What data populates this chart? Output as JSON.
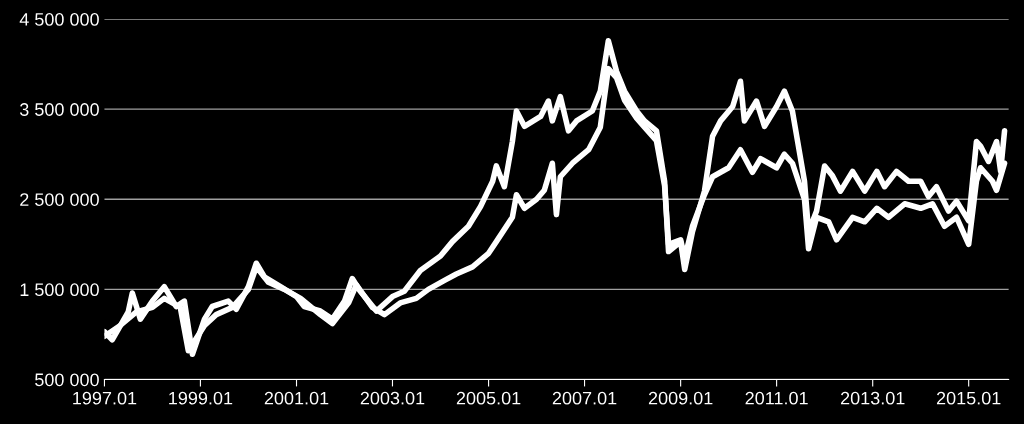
{
  "chart_data": {
    "type": "line",
    "series": [
      {
        "color": "#ffffff",
        "x": [
          "1997-01",
          "1997-03",
          "1997-07",
          "1997-08",
          "1997-10",
          "1998-01",
          "1998-04",
          "1998-07",
          "1998-09",
          "1998-11",
          "1999-02",
          "1999-04",
          "1999-08",
          "1999-10",
          "2000-01",
          "2000-03",
          "2000-05",
          "2000-09",
          "2001-01",
          "2001-03",
          "2001-07",
          "2001-10",
          "2002-01",
          "2002-03",
          "2002-05",
          "2002-09",
          "2003-01",
          "2003-04",
          "2003-08",
          "2004-01",
          "2004-04",
          "2004-08",
          "2004-11",
          "2005-02",
          "2005-03",
          "2005-05",
          "2005-07",
          "2005-08",
          "2005-10",
          "2006-02",
          "2006-04",
          "2006-05",
          "2006-07",
          "2006-09",
          "2006-11",
          "2007-03",
          "2007-05",
          "2007-07",
          "2007-09",
          "2007-11",
          "2008-02",
          "2008-04",
          "2008-07",
          "2008-09",
          "2008-10",
          "2009-01",
          "2009-02",
          "2009-04",
          "2009-07",
          "2009-09",
          "2009-11",
          "2010-02",
          "2010-04",
          "2010-05",
          "2010-08",
          "2010-10",
          "2011-01",
          "2011-03",
          "2011-05",
          "2011-08",
          "2011-09",
          "2011-11",
          "2012-01",
          "2012-03",
          "2012-05",
          "2012-08",
          "2012-11",
          "2013-02",
          "2013-04",
          "2013-07",
          "2013-10",
          "2014-01",
          "2014-03",
          "2014-05",
          "2014-08",
          "2014-10",
          "2015-01",
          "2015-03",
          "2015-04",
          "2015-06",
          "2015-08",
          "2015-09",
          "2015-10"
        ],
        "values": [
          1030000,
          940000,
          1250000,
          1460000,
          1170000,
          1370000,
          1530000,
          1310000,
          1370000,
          780000,
          1170000,
          1310000,
          1370000,
          1280000,
          1530000,
          1790000,
          1640000,
          1530000,
          1420000,
          1310000,
          1260000,
          1170000,
          1370000,
          1620000,
          1480000,
          1260000,
          1420000,
          1480000,
          1710000,
          1870000,
          2030000,
          2200000,
          2420000,
          2700000,
          2870000,
          2640000,
          3140000,
          3480000,
          3310000,
          3420000,
          3590000,
          3370000,
          3640000,
          3260000,
          3370000,
          3480000,
          3700000,
          4260000,
          3920000,
          3700000,
          3480000,
          3370000,
          3260000,
          2700000,
          1920000,
          2030000,
          1720000,
          2140000,
          2590000,
          3200000,
          3370000,
          3530000,
          3810000,
          3370000,
          3590000,
          3310000,
          3530000,
          3700000,
          3480000,
          2700000,
          2140000,
          2370000,
          2870000,
          2760000,
          2590000,
          2810000,
          2590000,
          2810000,
          2640000,
          2810000,
          2700000,
          2700000,
          2530000,
          2640000,
          2370000,
          2480000,
          2260000,
          3140000,
          3090000,
          2920000,
          3140000,
          2810000,
          3260000
        ]
      },
      {
        "color": "#ffffff",
        "x": [
          "1997-01",
          "1997-05",
          "1997-09",
          "1998-01",
          "1998-04",
          "1998-08",
          "1998-10",
          "1999-02",
          "1999-05",
          "1999-09",
          "2000-01",
          "2000-03",
          "2000-06",
          "2000-10",
          "2001-02",
          "2001-07",
          "2001-10",
          "2002-02",
          "2002-04",
          "2002-08",
          "2002-11",
          "2003-03",
          "2003-07",
          "2003-10",
          "2004-02",
          "2004-05",
          "2004-09",
          "2005-01",
          "2005-03",
          "2005-07",
          "2005-08",
          "2005-10",
          "2006-01",
          "2006-03",
          "2006-05",
          "2006-06",
          "2006-07",
          "2006-10",
          "2007-02",
          "2007-05",
          "2007-07",
          "2007-09",
          "2007-11",
          "2008-02",
          "2008-04",
          "2008-07",
          "2008-09",
          "2008-10",
          "2009-01",
          "2009-02",
          "2009-04",
          "2009-07",
          "2009-09",
          "2010-01",
          "2010-04",
          "2010-07",
          "2010-09",
          "2011-01",
          "2011-03",
          "2011-05",
          "2011-08",
          "2011-09",
          "2011-11",
          "2012-02",
          "2012-04",
          "2012-08",
          "2012-11",
          "2013-02",
          "2013-05",
          "2013-09",
          "2014-01",
          "2014-04",
          "2014-07",
          "2014-10",
          "2015-01",
          "2015-03",
          "2015-04",
          "2015-07",
          "2015-08",
          "2015-10"
        ],
        "values": [
          980000,
          1100000,
          1250000,
          1300000,
          1400000,
          1300000,
          820000,
          1100000,
          1220000,
          1300000,
          1500000,
          1750000,
          1580000,
          1500000,
          1400000,
          1220000,
          1120000,
          1350000,
          1550000,
          1300000,
          1220000,
          1350000,
          1400000,
          1500000,
          1600000,
          1670000,
          1750000,
          1900000,
          2030000,
          2300000,
          2550000,
          2400000,
          2500000,
          2600000,
          2900000,
          2330000,
          2750000,
          2900000,
          3050000,
          3300000,
          3950000,
          3850000,
          3600000,
          3400000,
          3300000,
          3150000,
          2650000,
          2000000,
          2050000,
          1850000,
          2200000,
          2550000,
          2750000,
          2850000,
          3050000,
          2800000,
          2950000,
          2850000,
          3000000,
          2900000,
          2500000,
          1950000,
          2300000,
          2250000,
          2050000,
          2300000,
          2250000,
          2400000,
          2300000,
          2450000,
          2400000,
          2450000,
          2200000,
          2300000,
          2000000,
          2700000,
          2850000,
          2700000,
          2600000,
          2900000
        ]
      }
    ],
    "xlim": [
      "1997-01",
      "2015-11"
    ],
    "xticks": [
      {
        "value": "1997-01",
        "label": "1997.01"
      },
      {
        "value": "1999-01",
        "label": "1999.01"
      },
      {
        "value": "2001-01",
        "label": "2001.01"
      },
      {
        "value": "2003-01",
        "label": "2003.01"
      },
      {
        "value": "2005-01",
        "label": "2005.01"
      },
      {
        "value": "2007-01",
        "label": "2007.01"
      },
      {
        "value": "2009-01",
        "label": "2009.01"
      },
      {
        "value": "2011-01",
        "label": "2011.01"
      },
      {
        "value": "2013-01",
        "label": "2013.01"
      },
      {
        "value": "2015-01",
        "label": "2015.01"
      }
    ],
    "ylim": [
      500000,
      4500000
    ],
    "yticks": [
      {
        "value": 500000,
        "label": "500 000"
      },
      {
        "value": 1500000,
        "label": "1 500 000"
      },
      {
        "value": 2500000,
        "label": "2 500 000"
      },
      {
        "value": 3500000,
        "label": "3 500 000"
      },
      {
        "value": 4500000,
        "label": "4 500 000"
      }
    ],
    "grid": "y",
    "legend": false,
    "marker": "none",
    "line_style": "solid"
  }
}
